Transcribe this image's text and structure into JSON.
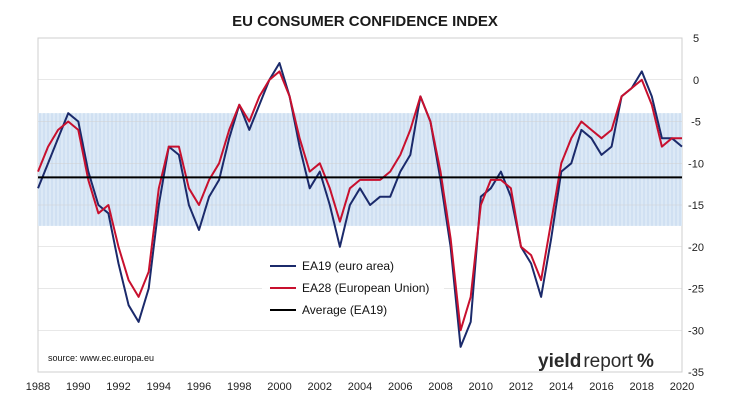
{
  "colors": {
    "series_ea19": "#1b2a6b",
    "series_ea28": "#c8102e",
    "average": "#000000",
    "band_fill": "#dce9f6",
    "grid": "#d0d0d0",
    "brand_accent": "#c8102e"
  },
  "source_text": "source: www.ec.europa.eu",
  "brand": {
    "word_main": "yield",
    "word_second": "report",
    "symbol": "%"
  },
  "chart_data": {
    "type": "line",
    "title": "EU CONSUMER CONFIDENCE INDEX",
    "xlabel": "",
    "ylabel": "",
    "xlim": [
      1988,
      2020
    ],
    "ylim": [
      -35,
      5
    ],
    "x_ticks": [
      "1988",
      "1990",
      "1992",
      "1994",
      "1996",
      "1998",
      "2000",
      "2002",
      "2004",
      "2006",
      "2008",
      "2010",
      "2012",
      "2014",
      "2016",
      "2018",
      "2020"
    ],
    "y_ticks": [
      "5",
      "0",
      "-5",
      "-10",
      "-15",
      "-20",
      "-25",
      "-30",
      "-35"
    ],
    "band": [
      -17.5,
      -4
    ],
    "grid": true,
    "legend_position": "center",
    "series": [
      {
        "name": "EA19 (euro area)",
        "x": [
          1988,
          1988.5,
          1989,
          1989.5,
          1990,
          1990.5,
          1991,
          1991.5,
          1992,
          1992.5,
          1993,
          1993.5,
          1994,
          1994.5,
          1995,
          1995.5,
          1996,
          1996.5,
          1997,
          1997.5,
          1998,
          1998.5,
          1999,
          1999.5,
          2000,
          2000.5,
          2001,
          2001.5,
          2002,
          2002.5,
          2003,
          2003.5,
          2004,
          2004.5,
          2005,
          2005.5,
          2006,
          2006.5,
          2007,
          2007.5,
          2008,
          2008.5,
          2009,
          2009.5,
          2010,
          2010.5,
          2011,
          2011.5,
          2012,
          2012.5,
          2013,
          2013.5,
          2014,
          2014.5,
          2015,
          2015.5,
          2016,
          2016.5,
          2017,
          2017.5,
          2018,
          2018.5,
          2019,
          2019.5,
          2020
        ],
        "values": [
          -13,
          -10,
          -7,
          -4,
          -5,
          -11,
          -15,
          -16,
          -22,
          -27,
          -29,
          -25,
          -15,
          -8,
          -9,
          -15,
          -18,
          -14,
          -12,
          -7,
          -3,
          -6,
          -3,
          0,
          2,
          -2,
          -8,
          -13,
          -11,
          -15,
          -20,
          -15,
          -13,
          -15,
          -14,
          -14,
          -11,
          -9,
          -2,
          -5,
          -12,
          -20,
          -32,
          -29,
          -14,
          -13,
          -11,
          -14,
          -20,
          -22,
          -26,
          -19,
          -11,
          -10,
          -6,
          -7,
          -9,
          -8,
          -2,
          -1,
          1,
          -2,
          -7,
          -7,
          -8
        ]
      },
      {
        "name": "EA28 (European Union)",
        "x": [
          1988,
          1988.5,
          1989,
          1989.5,
          1990,
          1990.5,
          1991,
          1991.5,
          1992,
          1992.5,
          1993,
          1993.5,
          1994,
          1994.5,
          1995,
          1995.5,
          1996,
          1996.5,
          1997,
          1997.5,
          1998,
          1998.5,
          1999,
          1999.5,
          2000,
          2000.5,
          2001,
          2001.5,
          2002,
          2002.5,
          2003,
          2003.5,
          2004,
          2004.5,
          2005,
          2005.5,
          2006,
          2006.5,
          2007,
          2007.5,
          2008,
          2008.5,
          2009,
          2009.5,
          2010,
          2010.5,
          2011,
          2011.5,
          2012,
          2012.5,
          2013,
          2013.5,
          2014,
          2014.5,
          2015,
          2015.5,
          2016,
          2016.5,
          2017,
          2017.5,
          2018,
          2018.5,
          2019,
          2019.5,
          2020
        ],
        "values": [
          -11,
          -8,
          -6,
          -5,
          -6,
          -12,
          -16,
          -15,
          -20,
          -24,
          -26,
          -23,
          -13,
          -8,
          -8,
          -13,
          -15,
          -12,
          -10,
          -6,
          -3,
          -5,
          -2,
          0,
          1,
          -2,
          -7,
          -11,
          -10,
          -13,
          -17,
          -13,
          -12,
          -12,
          -12,
          -11,
          -9,
          -6,
          -2,
          -5,
          -11,
          -19,
          -30,
          -26,
          -15,
          -12,
          -12,
          -13,
          -20,
          -21,
          -24,
          -17,
          -10,
          -7,
          -5,
          -6,
          -7,
          -6,
          -2,
          -1,
          0,
          -3,
          -8,
          -7,
          -7
        ]
      },
      {
        "name": "Average (EA19)",
        "x": [
          1988,
          2020
        ],
        "values": [
          -11.7,
          -11.7
        ]
      }
    ]
  }
}
